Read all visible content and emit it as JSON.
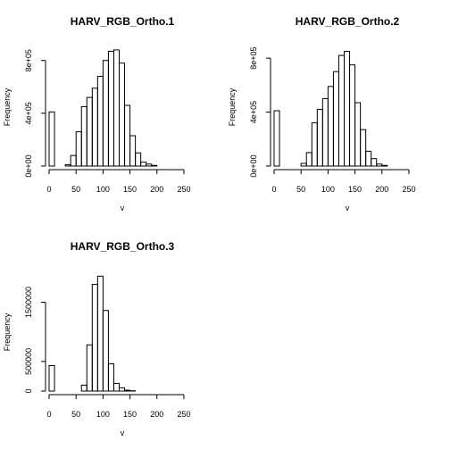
{
  "chart_data": [
    {
      "type": "bar",
      "title": "HARV_RGB_Ortho.1",
      "xlabel": "v",
      "ylabel": "Frequency",
      "xlim": [
        0,
        260
      ],
      "ylim": [
        0,
        920000
      ],
      "x_ticks": [
        0,
        50,
        100,
        150,
        200,
        250
      ],
      "x_tick_labels": [
        "0",
        "50",
        "100",
        "150",
        "200",
        "250"
      ],
      "y_ticks": [
        0,
        400000,
        800000
      ],
      "y_tick_labels": [
        "0e+00",
        "4e+05",
        "8e+05"
      ],
      "bin_width": 10,
      "bins_start": [
        0,
        10,
        20,
        30,
        40,
        50,
        60,
        70,
        80,
        90,
        100,
        110,
        120,
        130,
        140,
        150,
        160,
        170,
        180,
        190,
        200,
        210,
        220,
        230,
        240,
        250
      ],
      "values": [
        410000,
        0,
        0,
        10000,
        80000,
        260000,
        450000,
        520000,
        590000,
        680000,
        800000,
        870000,
        880000,
        780000,
        460000,
        230000,
        100000,
        30000,
        15000,
        5000,
        0,
        0,
        0,
        0,
        0,
        0
      ]
    },
    {
      "type": "bar",
      "title": "HARV_RGB_Ortho.2",
      "xlabel": "v",
      "ylabel": "Frequency",
      "xlim": [
        0,
        260
      ],
      "ylim": [
        0,
        900000
      ],
      "x_ticks": [
        0,
        50,
        100,
        150,
        200,
        250
      ],
      "x_tick_labels": [
        "0",
        "50",
        "100",
        "150",
        "200",
        "250"
      ],
      "y_ticks": [
        0,
        400000,
        800000
      ],
      "y_tick_labels": [
        "0e+00",
        "4e+05",
        "8e+05"
      ],
      "bin_width": 10,
      "bins_start": [
        0,
        10,
        20,
        30,
        40,
        50,
        60,
        70,
        80,
        90,
        100,
        110,
        120,
        130,
        140,
        150,
        160,
        170,
        180,
        190,
        200,
        210,
        220,
        230,
        240,
        250
      ],
      "values": [
        410000,
        0,
        0,
        0,
        0,
        20000,
        100000,
        320000,
        420000,
        500000,
        590000,
        700000,
        820000,
        850000,
        750000,
        470000,
        270000,
        110000,
        55000,
        15000,
        5000,
        0,
        0,
        0,
        0,
        0
      ]
    },
    {
      "type": "bar",
      "title": "HARV_RGB_Ortho.3",
      "xlabel": "v",
      "ylabel": "Frequency",
      "xlim": [
        0,
        260
      ],
      "ylim": [
        0,
        2050000
      ],
      "x_ticks": [
        0,
        50,
        100,
        150,
        200,
        250
      ],
      "x_tick_labels": [
        "0",
        "50",
        "100",
        "150",
        "200",
        "250"
      ],
      "y_ticks": [
        0,
        500000,
        1500000
      ],
      "y_tick_labels": [
        "0",
        "500000",
        "1500000"
      ],
      "bin_width": 10,
      "bins_start": [
        0,
        10,
        20,
        30,
        40,
        50,
        60,
        70,
        80,
        90,
        100,
        110,
        120,
        130,
        140,
        150,
        160,
        170,
        180,
        190,
        200,
        210,
        220,
        230,
        240,
        250
      ],
      "values": [
        430000,
        0,
        0,
        0,
        0,
        0,
        100000,
        780000,
        1800000,
        1940000,
        1360000,
        460000,
        130000,
        55000,
        15000,
        5000,
        0,
        0,
        0,
        0,
        0,
        0,
        0,
        0,
        0,
        0
      ]
    }
  ]
}
